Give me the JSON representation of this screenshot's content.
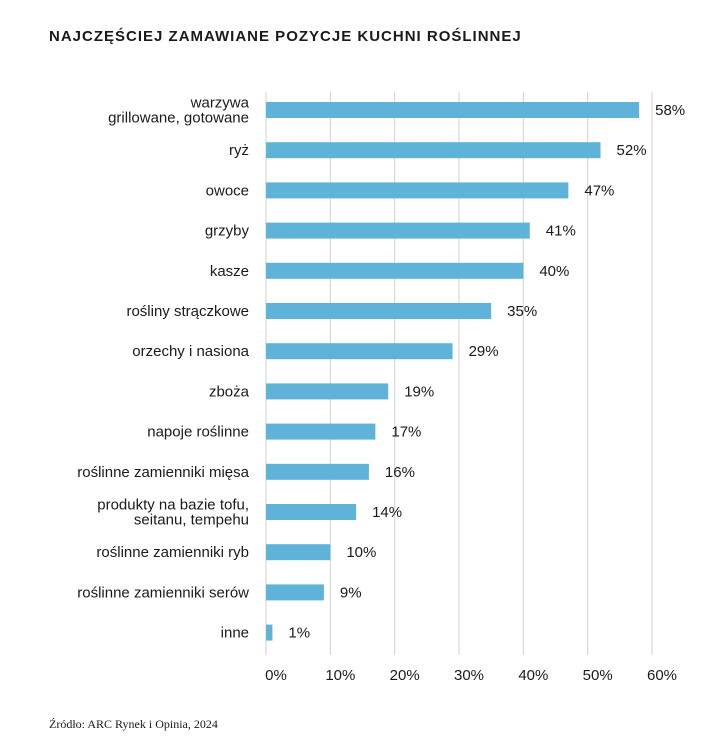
{
  "chart_data": {
    "type": "bar",
    "orientation": "horizontal",
    "title": "NAJCZĘŚCIEJ ZAMAWIANE POZYCJE KUCHNI ROŚLINNEJ",
    "categories": [
      [
        "warzywa",
        "grillowane, gotowane"
      ],
      [
        "ryż"
      ],
      [
        "owoce"
      ],
      [
        "grzyby"
      ],
      [
        "kasze"
      ],
      [
        "rośliny strączkowe"
      ],
      [
        "orzechy i nasiona"
      ],
      [
        "zboża"
      ],
      [
        "napoje roślinne"
      ],
      [
        "roślinne zamienniki mięsa"
      ],
      [
        "produkty na bazie tofu,",
        "seitanu, tempehu"
      ],
      [
        "roślinne zamienniki ryb"
      ],
      [
        "roślinne zamienniki serów"
      ],
      [
        "inne"
      ]
    ],
    "values": [
      58,
      52,
      47,
      41,
      40,
      35,
      29,
      19,
      17,
      16,
      14,
      10,
      9,
      1
    ],
    "value_labels": [
      "58%",
      "52%",
      "47%",
      "41%",
      "40%",
      "35%",
      "29%",
      "19%",
      "17%",
      "16%",
      "14%",
      "10%",
      "9%",
      "1%"
    ],
    "xlim": [
      0,
      60
    ],
    "x_ticks": [
      0,
      10,
      20,
      30,
      40,
      50,
      60
    ],
    "x_tick_labels": [
      "0%",
      "10%",
      "20%",
      "30%",
      "40%",
      "50%",
      "60%"
    ],
    "grid": "vertical",
    "bar_color": "#5fb3d9",
    "grid_color": "#d0d0d0"
  },
  "source": "Źródło: ARC Rynek i Opinia, 2024"
}
